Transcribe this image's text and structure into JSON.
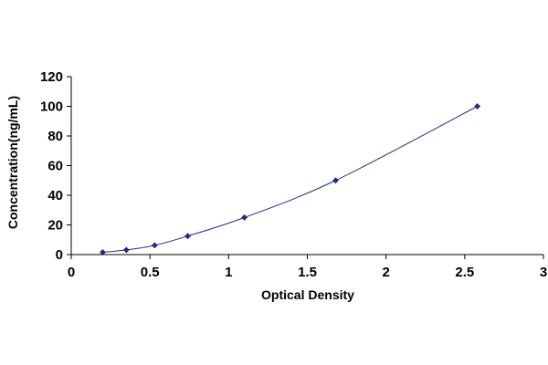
{
  "chart_data": {
    "type": "scatter",
    "title": "",
    "xlabel": "Optical Density",
    "ylabel": "Concentration(ng/mL)",
    "xlim": [
      0,
      3
    ],
    "ylim": [
      0,
      120
    ],
    "x_ticks": [
      "0",
      "0.5",
      "1",
      "1.5",
      "2",
      "2.5",
      "3"
    ],
    "y_ticks": [
      "0",
      "20",
      "40",
      "60",
      "80",
      "100",
      "120"
    ],
    "grid": false,
    "legend": "none",
    "marker_color": "#1f2f7a",
    "line_color": "#1f2f7a",
    "series": [
      {
        "x": [
          0.2,
          0.35,
          0.53,
          0.74,
          1.1,
          1.68,
          2.58
        ],
        "y": [
          1.56,
          3.12,
          6.25,
          12.5,
          25,
          50,
          100
        ]
      }
    ]
  }
}
